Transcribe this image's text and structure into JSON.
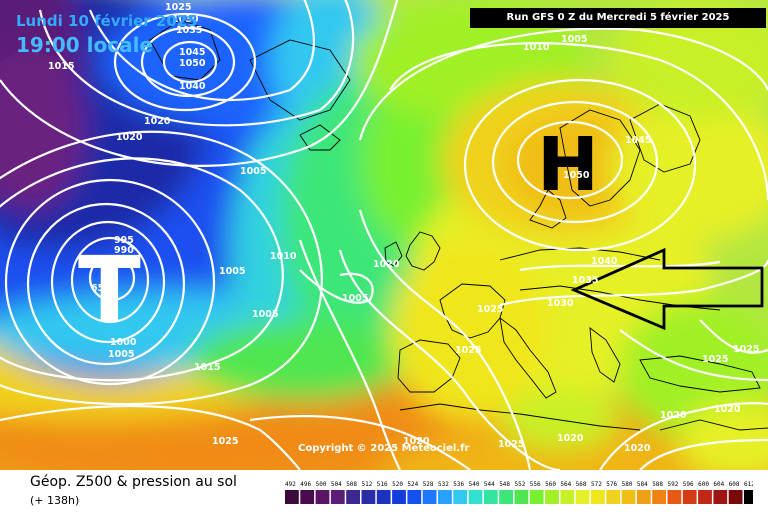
{
  "header": {
    "date": "Lundi 10 février 2025",
    "local_time": "19:00 locale",
    "run_info": "Run GFS 0 Z du Mercredi 5 février 2025"
  },
  "map": {
    "high_letter": "H",
    "low_letter": "T",
    "copyright": "Copyright © 2025 Meteociel.fr",
    "arrow": "outline arrow pointing west over central Europe",
    "pressure_labels": [
      {
        "id": "p1",
        "text": "1025"
      },
      {
        "id": "p2",
        "text": "1030"
      },
      {
        "id": "p3",
        "text": "1035"
      },
      {
        "id": "p4",
        "text": "1045"
      },
      {
        "id": "p5",
        "text": "1050"
      },
      {
        "id": "p6",
        "text": "1040"
      },
      {
        "id": "p7",
        "text": "1015"
      },
      {
        "id": "p8",
        "text": "1020"
      },
      {
        "id": "p9",
        "text": "1020"
      },
      {
        "id": "p10",
        "text": "1005"
      },
      {
        "id": "p11",
        "text": "1010"
      },
      {
        "id": "p12",
        "text": "1005"
      },
      {
        "id": "p13",
        "text": "1005"
      },
      {
        "id": "p14",
        "text": "1005"
      },
      {
        "id": "p15",
        "text": "995"
      },
      {
        "id": "p16",
        "text": "990"
      },
      {
        "id": "p17",
        "text": "65"
      },
      {
        "id": "p18",
        "text": "1000"
      },
      {
        "id": "p19",
        "text": "1005"
      },
      {
        "id": "p20",
        "text": "1015"
      },
      {
        "id": "p21",
        "text": "1025"
      },
      {
        "id": "p22",
        "text": "1020"
      },
      {
        "id": "p23",
        "text": "1025"
      },
      {
        "id": "p24",
        "text": "1025"
      },
      {
        "id": "p25",
        "text": "1020"
      },
      {
        "id": "p26",
        "text": "1025"
      },
      {
        "id": "p27",
        "text": "1020"
      },
      {
        "id": "p28",
        "text": "1020"
      },
      {
        "id": "p29",
        "text": "1030"
      },
      {
        "id": "p30",
        "text": "1040"
      },
      {
        "id": "p31",
        "text": "1035"
      },
      {
        "id": "p32",
        "text": "1050"
      },
      {
        "id": "p33",
        "text": "1045"
      },
      {
        "id": "p34",
        "text": "1010"
      },
      {
        "id": "p35",
        "text": "1005"
      },
      {
        "id": "p36",
        "text": "1025"
      },
      {
        "id": "p37",
        "text": "1025"
      },
      {
        "id": "p38",
        "text": "1020"
      },
      {
        "id": "p39",
        "text": "1020"
      }
    ]
  },
  "footer": {
    "parameter_title": "Géop. Z500 & pression au sol",
    "lead_time": "(+ 138h)"
  },
  "colorbar": {
    "ticks": [
      "492",
      "496",
      "500",
      "504",
      "508",
      "512",
      "516",
      "520",
      "524",
      "528",
      "532",
      "536",
      "540",
      "544",
      "548",
      "552",
      "556",
      "560",
      "564",
      "568",
      "572",
      "576",
      "580",
      "584",
      "588",
      "592",
      "596",
      "600",
      "604",
      "608",
      "612"
    ],
    "colors": [
      "#3a0a3a",
      "#4a0a50",
      "#5a1464",
      "#5a1e78",
      "#3c2890",
      "#2a2ca8",
      "#1e32c0",
      "#143cd8",
      "#1450f0",
      "#1e78ff",
      "#28a0ff",
      "#32c8f0",
      "#32e0d0",
      "#32e6a0",
      "#3ce678",
      "#50e650",
      "#78f032",
      "#a0f028",
      "#c8f028",
      "#e6f028",
      "#f0e61e",
      "#f0d21e",
      "#f0be14",
      "#f0a014",
      "#f08214",
      "#e65a14",
      "#d23c14",
      "#be2814",
      "#a01414",
      "#780a0a",
      "#000000"
    ]
  }
}
